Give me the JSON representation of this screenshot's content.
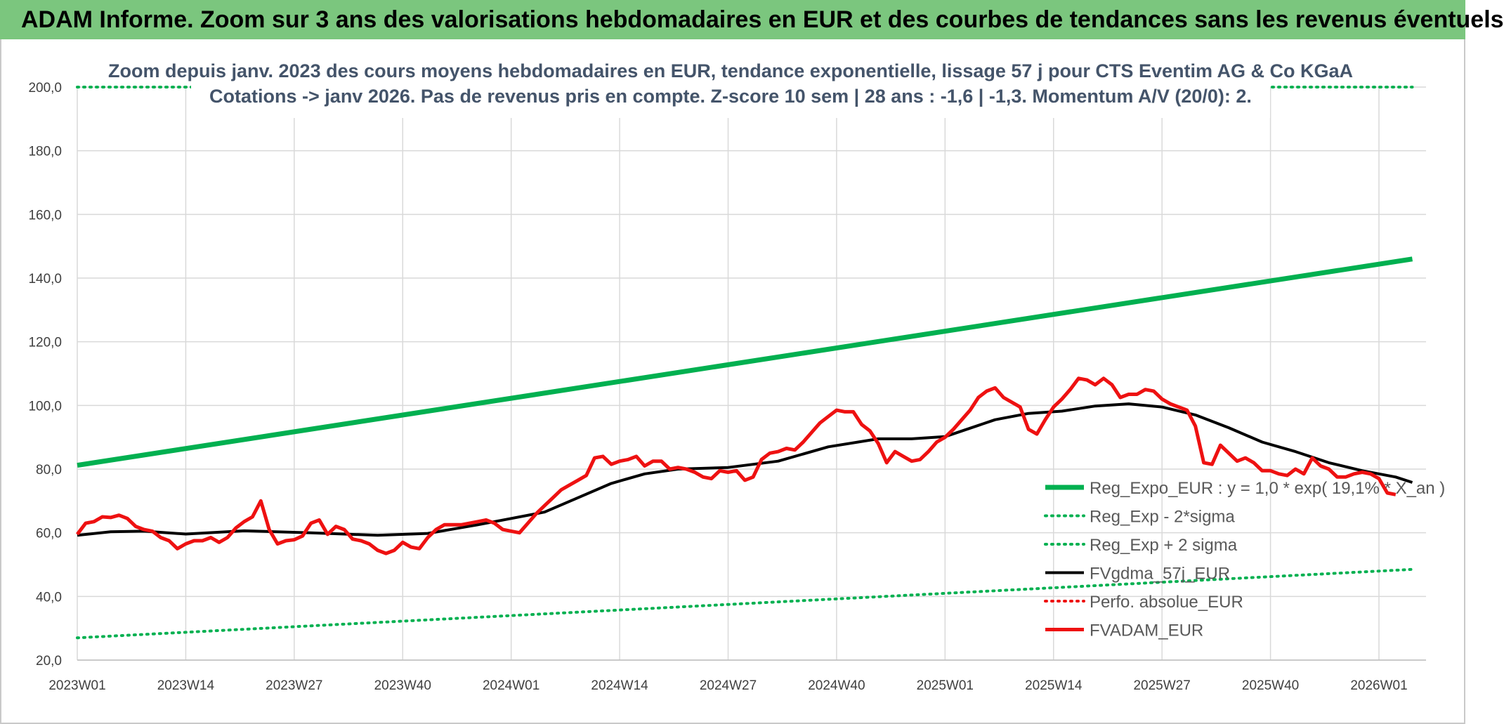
{
  "banner": {
    "title": "ADAM Informe. Zoom sur 3 ans des valorisations hebdomadaires en EUR et des courbes de tendances sans les revenus éventuels"
  },
  "colors": {
    "banner_bg": "#7bc67e",
    "trend_green": "#00b050",
    "price_red": "#ee1111",
    "smooth_black": "#000000",
    "title_text": "#44546a",
    "grid": "#d9d9d9"
  },
  "chart_data": {
    "type": "line",
    "title_lines": [
      "Zoom depuis janv. 2023 des cours moyens hebdomadaires en EUR, tendance exponentielle, lissage 57 j pour CTS Eventim AG & Co KGaA",
      "Cotations -> janv 2026. Pas de revenus pris en compte. Z-score 10 sem | 28 ans : -1,6 | -1,3. Momentum A/V (20/0): 2."
    ],
    "ylim": [
      20,
      200
    ],
    "yticks": [
      "20,0",
      "40,0",
      "60,0",
      "80,0",
      "100,0",
      "120,0",
      "140,0",
      "160,0",
      "180,0",
      "200,0"
    ],
    "xticks": [
      "2023W01",
      "2023W14",
      "2023W27",
      "2023W40",
      "2024W01",
      "2024W14",
      "2024W27",
      "2024W40",
      "2025W01",
      "2025W14",
      "2025W27",
      "2025W40",
      "2026W01"
    ],
    "x_tick_week_index": [
      0,
      13,
      26,
      39,
      52,
      65,
      78,
      91,
      104,
      117,
      130,
      143,
      156
    ],
    "week_count": 161,
    "grid": true,
    "legend_position": "bottom-right",
    "series": [
      {
        "name": "Reg_Expo_EUR : y = 1,0 * exp( 19,1% *  X_an )",
        "style": "solid-thick",
        "color": "#00b050",
        "points": [
          [
            0,
            81.2
          ],
          [
            160,
            146.0
          ]
        ]
      },
      {
        "name": "Reg_Exp - 2*sigma",
        "style": "dotted",
        "color": "#00b050",
        "points": [
          [
            0,
            27.0
          ],
          [
            160,
            48.5
          ]
        ]
      },
      {
        "name": "Reg_Exp + 2 sigma",
        "style": "dotted",
        "color": "#00b050",
        "points": [
          [
            0,
            200.0
          ],
          [
            160,
            200.0
          ]
        ]
      },
      {
        "name": "FVgdma_57j_EUR",
        "style": "solid",
        "color": "#000000",
        "points": [
          [
            0,
            59.2
          ],
          [
            4,
            60.3
          ],
          [
            8,
            60.5
          ],
          [
            13,
            59.6
          ],
          [
            20,
            60.6
          ],
          [
            28,
            60.0
          ],
          [
            36,
            59.2
          ],
          [
            42,
            59.8
          ],
          [
            48,
            62.5
          ],
          [
            52,
            64.5
          ],
          [
            56,
            66.5
          ],
          [
            60,
            71.0
          ],
          [
            64,
            75.5
          ],
          [
            68,
            78.5
          ],
          [
            72,
            80.0
          ],
          [
            78,
            80.5
          ],
          [
            84,
            82.5
          ],
          [
            90,
            87.0
          ],
          [
            96,
            89.5
          ],
          [
            100,
            89.5
          ],
          [
            104,
            90.2
          ],
          [
            110,
            95.5
          ],
          [
            114,
            97.5
          ],
          [
            118,
            98.2
          ],
          [
            122,
            99.8
          ],
          [
            126,
            100.5
          ],
          [
            130,
            99.5
          ],
          [
            134,
            97.0
          ],
          [
            138,
            93.0
          ],
          [
            142,
            88.5
          ],
          [
            146,
            85.5
          ],
          [
            150,
            82.0
          ],
          [
            154,
            79.5
          ],
          [
            158,
            77.5
          ],
          [
            160,
            75.8
          ]
        ]
      },
      {
        "name": "Perfo. absolue_EUR",
        "style": "dotted",
        "color": "#ee1111",
        "points": []
      },
      {
        "name": "FVADAM_EUR",
        "style": "solid-thick",
        "color": "#ee1111",
        "points": [
          [
            0,
            59.5
          ],
          [
            1,
            63.0
          ],
          [
            2,
            63.5
          ],
          [
            3,
            65.0
          ],
          [
            4,
            64.8
          ],
          [
            5,
            65.5
          ],
          [
            6,
            64.5
          ],
          [
            7,
            62.0
          ],
          [
            8,
            61.0
          ],
          [
            9,
            60.5
          ],
          [
            10,
            58.5
          ],
          [
            11,
            57.5
          ],
          [
            12,
            55.0
          ],
          [
            13,
            56.5
          ],
          [
            14,
            57.5
          ],
          [
            15,
            57.5
          ],
          [
            16,
            58.5
          ],
          [
            17,
            57.0
          ],
          [
            18,
            58.5
          ],
          [
            19,
            61.5
          ],
          [
            20,
            63.5
          ],
          [
            21,
            65.0
          ],
          [
            22,
            70.0
          ],
          [
            23,
            61.0
          ],
          [
            24,
            56.5
          ],
          [
            25,
            57.5
          ],
          [
            26,
            57.8
          ],
          [
            27,
            59.0
          ],
          [
            28,
            63.0
          ],
          [
            29,
            64.0
          ],
          [
            30,
            59.5
          ],
          [
            31,
            62.0
          ],
          [
            32,
            61.0
          ],
          [
            33,
            58.0
          ],
          [
            34,
            57.5
          ],
          [
            35,
            56.5
          ],
          [
            36,
            54.5
          ],
          [
            37,
            53.5
          ],
          [
            38,
            54.5
          ],
          [
            39,
            57.0
          ],
          [
            40,
            55.5
          ],
          [
            41,
            55.0
          ],
          [
            42,
            58.5
          ],
          [
            43,
            61.0
          ],
          [
            44,
            62.5
          ],
          [
            45,
            62.5
          ],
          [
            46,
            62.5
          ],
          [
            47,
            63.0
          ],
          [
            48,
            63.5
          ],
          [
            49,
            64.0
          ],
          [
            50,
            63.0
          ],
          [
            51,
            61.0
          ],
          [
            52,
            60.5
          ],
          [
            53,
            60.0
          ],
          [
            54,
            63.0
          ],
          [
            55,
            66.0
          ],
          [
            56,
            68.5
          ],
          [
            57,
            71.0
          ],
          [
            58,
            73.5
          ],
          [
            59,
            75.0
          ],
          [
            60,
            76.5
          ],
          [
            61,
            78.0
          ],
          [
            62,
            83.5
          ],
          [
            63,
            84.0
          ],
          [
            64,
            81.5
          ],
          [
            65,
            82.5
          ],
          [
            66,
            83.0
          ],
          [
            67,
            84.0
          ],
          [
            68,
            81.0
          ],
          [
            69,
            82.5
          ],
          [
            70,
            82.5
          ],
          [
            71,
            80.0
          ],
          [
            72,
            80.5
          ],
          [
            73,
            80.0
          ],
          [
            74,
            79.0
          ],
          [
            75,
            77.5
          ],
          [
            76,
            77.0
          ],
          [
            77,
            79.5
          ],
          [
            78,
            79.0
          ],
          [
            79,
            79.5
          ],
          [
            80,
            76.5
          ],
          [
            81,
            77.5
          ],
          [
            82,
            83.0
          ],
          [
            83,
            85.0
          ],
          [
            84,
            85.5
          ],
          [
            85,
            86.5
          ],
          [
            86,
            86.0
          ],
          [
            87,
            88.5
          ],
          [
            88,
            91.5
          ],
          [
            89,
            94.5
          ],
          [
            90,
            96.5
          ],
          [
            91,
            98.5
          ],
          [
            92,
            98.0
          ],
          [
            93,
            98.0
          ],
          [
            94,
            94.0
          ],
          [
            95,
            92.0
          ],
          [
            96,
            88.0
          ],
          [
            97,
            82.0
          ],
          [
            98,
            85.5
          ],
          [
            99,
            84.0
          ],
          [
            100,
            82.5
          ],
          [
            101,
            83.0
          ],
          [
            102,
            85.5
          ],
          [
            103,
            88.5
          ],
          [
            104,
            90.0
          ],
          [
            105,
            92.5
          ],
          [
            106,
            95.5
          ],
          [
            107,
            98.5
          ],
          [
            108,
            102.5
          ],
          [
            109,
            104.5
          ],
          [
            110,
            105.5
          ],
          [
            111,
            102.5
          ],
          [
            112,
            101.0
          ],
          [
            113,
            99.5
          ],
          [
            114,
            92.5
          ],
          [
            115,
            91.0
          ],
          [
            116,
            95.5
          ],
          [
            117,
            99.5
          ],
          [
            118,
            102.0
          ],
          [
            119,
            105.0
          ],
          [
            120,
            108.5
          ],
          [
            121,
            108.0
          ],
          [
            122,
            106.5
          ],
          [
            123,
            108.5
          ],
          [
            124,
            106.5
          ],
          [
            125,
            102.5
          ],
          [
            126,
            103.5
          ],
          [
            127,
            103.5
          ],
          [
            128,
            105.0
          ],
          [
            129,
            104.5
          ],
          [
            130,
            102.0
          ],
          [
            131,
            100.5
          ],
          [
            132,
            99.5
          ],
          [
            133,
            98.5
          ],
          [
            134,
            93.5
          ],
          [
            135,
            82.0
          ],
          [
            136,
            81.5
          ],
          [
            137,
            87.5
          ],
          [
            138,
            85.0
          ],
          [
            139,
            82.5
          ],
          [
            140,
            83.5
          ],
          [
            141,
            82.0
          ],
          [
            142,
            79.5
          ],
          [
            143,
            79.5
          ],
          [
            144,
            78.5
          ],
          [
            145,
            78.0
          ],
          [
            146,
            80.0
          ],
          [
            147,
            78.5
          ],
          [
            148,
            83.5
          ],
          [
            149,
            81.0
          ],
          [
            150,
            80.0
          ],
          [
            151,
            77.5
          ],
          [
            152,
            77.5
          ],
          [
            153,
            78.5
          ],
          [
            154,
            79.0
          ],
          [
            155,
            78.5
          ],
          [
            156,
            77.0
          ],
          [
            157,
            72.5
          ],
          [
            158,
            72.0
          ]
        ]
      }
    ]
  }
}
